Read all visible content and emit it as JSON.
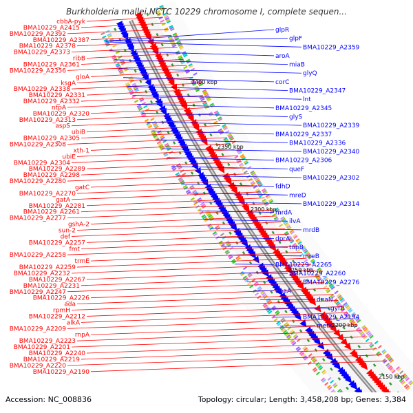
{
  "title": "Burkholderia mallei NCTC 10229 chromosome I, complete sequen...",
  "footer": {
    "accession": "Accession: NC_008836",
    "summary": "Topology: circular; Length: 3,458,208 bp; Genes: 3,384"
  },
  "ticks": [
    "2400 kbp",
    "2350 kbp",
    "2300 kbp",
    "2250 kbp",
    "2200 kbp",
    "2150 kbp"
  ],
  "colors": {
    "left_strand": "#ff0000",
    "right_strand": "#0000ff",
    "backbone": "#999999"
  },
  "left_labels": [
    "cbbA-pyk",
    "BMA10229_A2415",
    "BMA10229_A2392",
    "BMA10229_A2387",
    "BMA10229_A2378",
    "BMA10229_A2373",
    "ribB",
    "BMA10229_A2361",
    "BMA10229_A2356",
    "gloA",
    "ksgA",
    "BMA10229_A2338",
    "BMA10229_A2331",
    "BMA10229_A2332",
    "ntpA",
    "BMA10229_A2320",
    "BMA10229_A2313",
    "aspS",
    "ubiB",
    "BMA10229_A2305",
    "BMA10229_A2308",
    "xth-1",
    "ubiE",
    "BMA10229_A2304",
    "BMA10229_A2289",
    "BMA10229_A2298",
    "BMA10229_A2280",
    "gatC",
    "BMA10229_A2270",
    "gatA",
    "BMA10229_A2281",
    "BMA10229_A2261",
    "BMA10229_A2277",
    "gshA-2",
    "sun-2",
    "def",
    "BMA10229_A2257",
    "fmt",
    "BMA10229_A2258",
    "trmE",
    "BMA10229_A2259",
    "BMA10229_A2232",
    "BMA10229_A2267",
    "BMA10229_A2231",
    "BMA10229_A2247",
    "BMA10229_A2226",
    "ada",
    "rpmH",
    "BMA10229_A2212",
    "alkA",
    "BMA10229_A2209",
    "rnpA",
    "BMA10229_A2223",
    "BMA10229_A2201",
    "BMA10229_A2240",
    "BMA10229_A2219",
    "BMA10229_A2220",
    "BMA10229_A2190"
  ],
  "right_labels": [
    "glpR",
    "glpF",
    "BMA10229_A2359",
    "aroA",
    "miaB",
    "glyQ",
    "corC",
    "BMA10229_A2347",
    "lnt",
    "BMA10229_A2345",
    "glyS",
    "BMA10229_A2339",
    "BMA10229_A2337",
    "BMA10229_A2336",
    "BMA10229_A2340",
    "BMA10229_A2306",
    "queF",
    "BMA10229_A2302",
    "fdhD",
    "mreD",
    "BMA10229_A2314",
    "mrdA",
    "ilvA",
    "mrdB",
    "dprA",
    "topB",
    "mreB",
    "BMA10229_A2265",
    "BMA10229_A2260",
    "BMA10229_A2276",
    "dnaA",
    "dnaN",
    "gyrB",
    "BMA10229_A2194",
    "metK"
  ]
}
